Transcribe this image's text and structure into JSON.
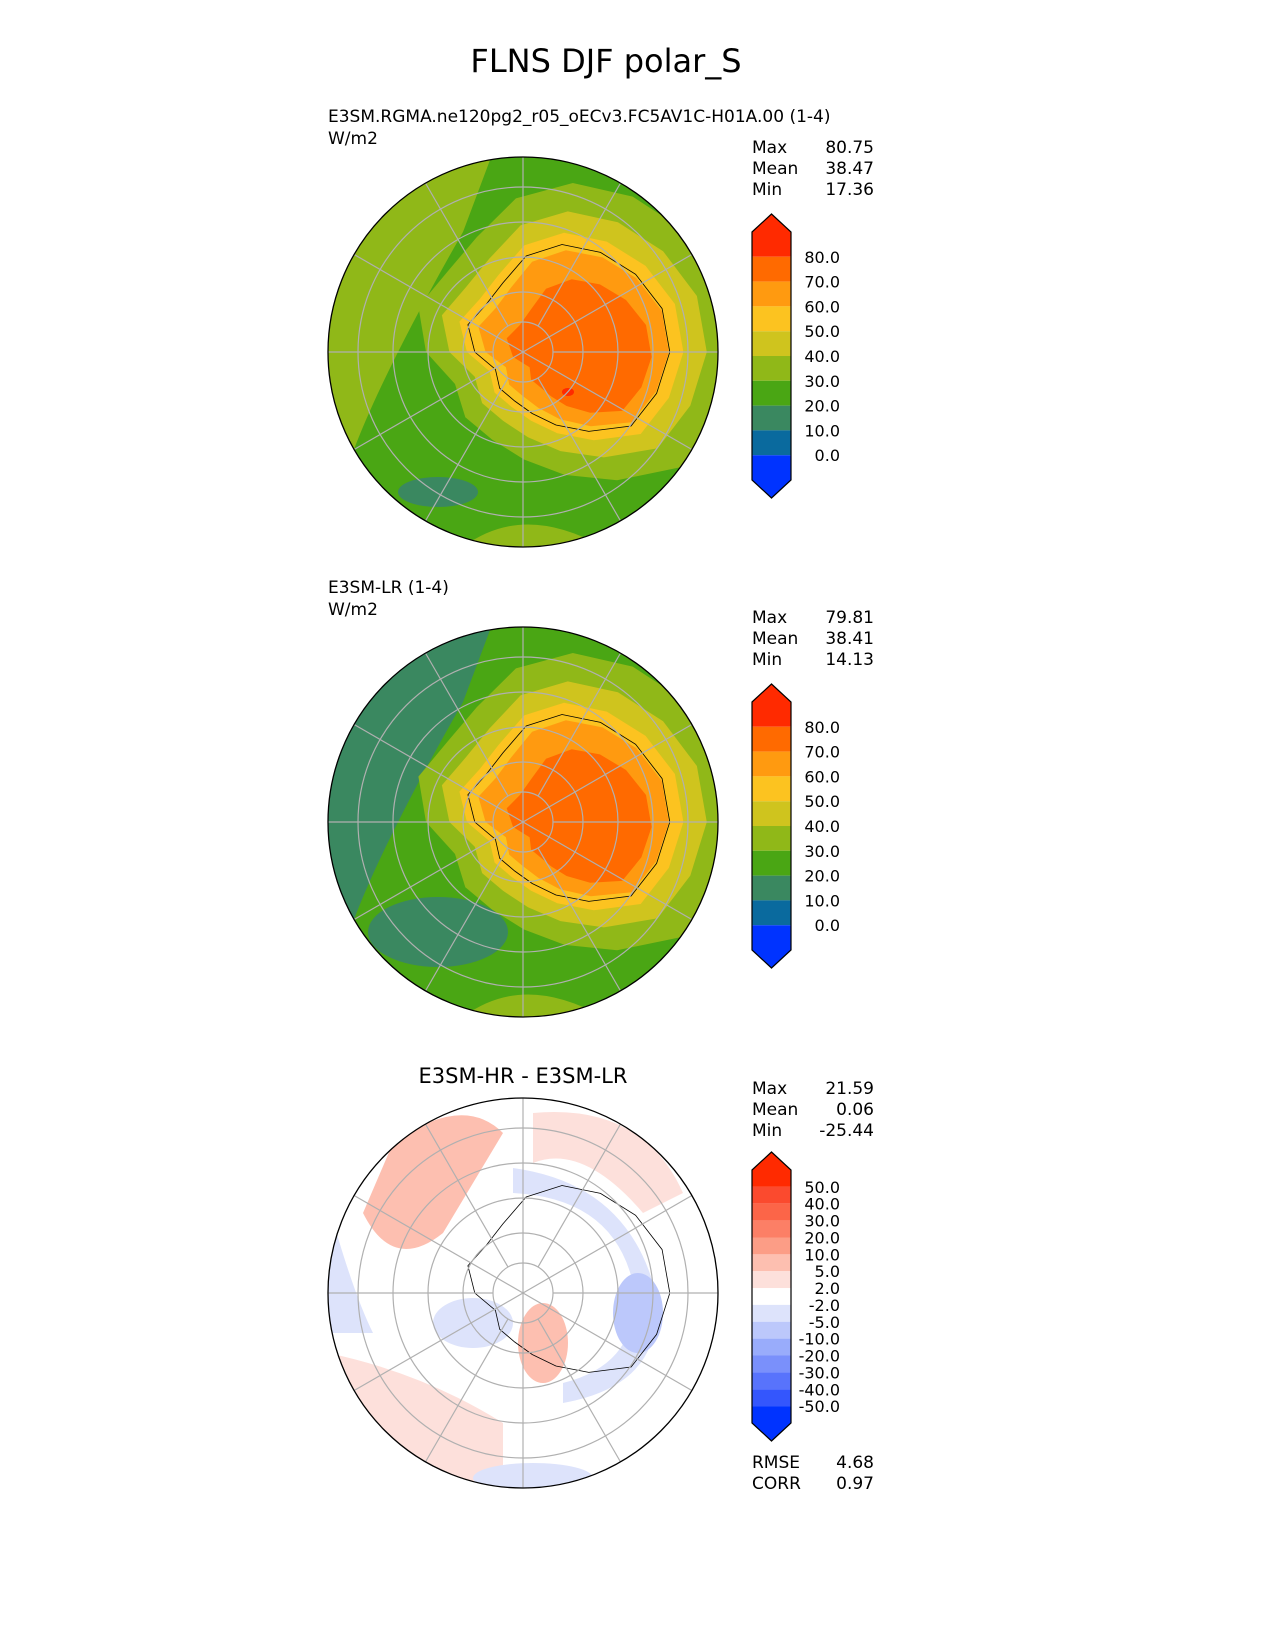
{
  "title": "FLNS DJF polar_S",
  "chart_data": [
    {
      "type": "heatmap",
      "projection": "south-polar-stereographic",
      "title": "E3SM.RGMA.ne120pg2_r05_oECv3.FC5AV1C-H01A.00 (1-4)",
      "units": "W/m2",
      "stats": {
        "max_label": "Max",
        "max": "80.75",
        "mean_label": "Mean",
        "mean": "38.47",
        "min_label": "Min",
        "min": "17.36"
      },
      "colorbar": {
        "labels": [
          "80.0",
          "70.0",
          "60.0",
          "50.0",
          "40.0",
          "30.0",
          "20.0",
          "10.0",
          "0.0"
        ],
        "colors": [
          "#ff2a00",
          "#ff6a00",
          "#ff9a10",
          "#fcc320",
          "#cfc41e",
          "#90b818",
          "#4aa614",
          "#3a8860",
          "#0a6a9e",
          "#0033ff"
        ],
        "extend": "both"
      }
    },
    {
      "type": "heatmap",
      "projection": "south-polar-stereographic",
      "title": "E3SM-LR (1-4)",
      "units": "W/m2",
      "stats": {
        "max_label": "Max",
        "max": "79.81",
        "mean_label": "Mean",
        "mean": "38.41",
        "min_label": "Min",
        "min": "14.13"
      },
      "colorbar": {
        "labels": [
          "80.0",
          "70.0",
          "60.0",
          "50.0",
          "40.0",
          "30.0",
          "20.0",
          "10.0",
          "0.0"
        ],
        "colors": [
          "#ff2a00",
          "#ff6a00",
          "#ff9a10",
          "#fcc320",
          "#cfc41e",
          "#90b818",
          "#4aa614",
          "#3a8860",
          "#0a6a9e",
          "#0033ff"
        ],
        "extend": "both"
      }
    },
    {
      "type": "heatmap",
      "projection": "south-polar-stereographic",
      "title": "E3SM-HR - E3SM-LR",
      "stats": {
        "max_label": "Max",
        "max": "21.59",
        "mean_label": "Mean",
        "mean": "0.06",
        "min_label": "Min",
        "min": "-25.44",
        "rmse_label": "RMSE",
        "rmse": "4.68",
        "corr_label": "CORR",
        "corr": "0.97"
      },
      "colorbar": {
        "labels": [
          "50.0",
          "40.0",
          "30.0",
          "20.0",
          "10.0",
          "5.0",
          "2.0",
          "-2.0",
          "-5.0",
          "-10.0",
          "-20.0",
          "-30.0",
          "-40.0",
          "-50.0"
        ],
        "colors": [
          "#ff2a00",
          "#fb4a2e",
          "#fc6548",
          "#fc7f66",
          "#fc9d86",
          "#fdbfb0",
          "#fde0db",
          "#ffffff",
          "#dde3fb",
          "#bcc8fb",
          "#99acfb",
          "#7a90fb",
          "#5873fc",
          "#3456fd",
          "#0033ff"
        ],
        "extend": "both"
      }
    }
  ]
}
